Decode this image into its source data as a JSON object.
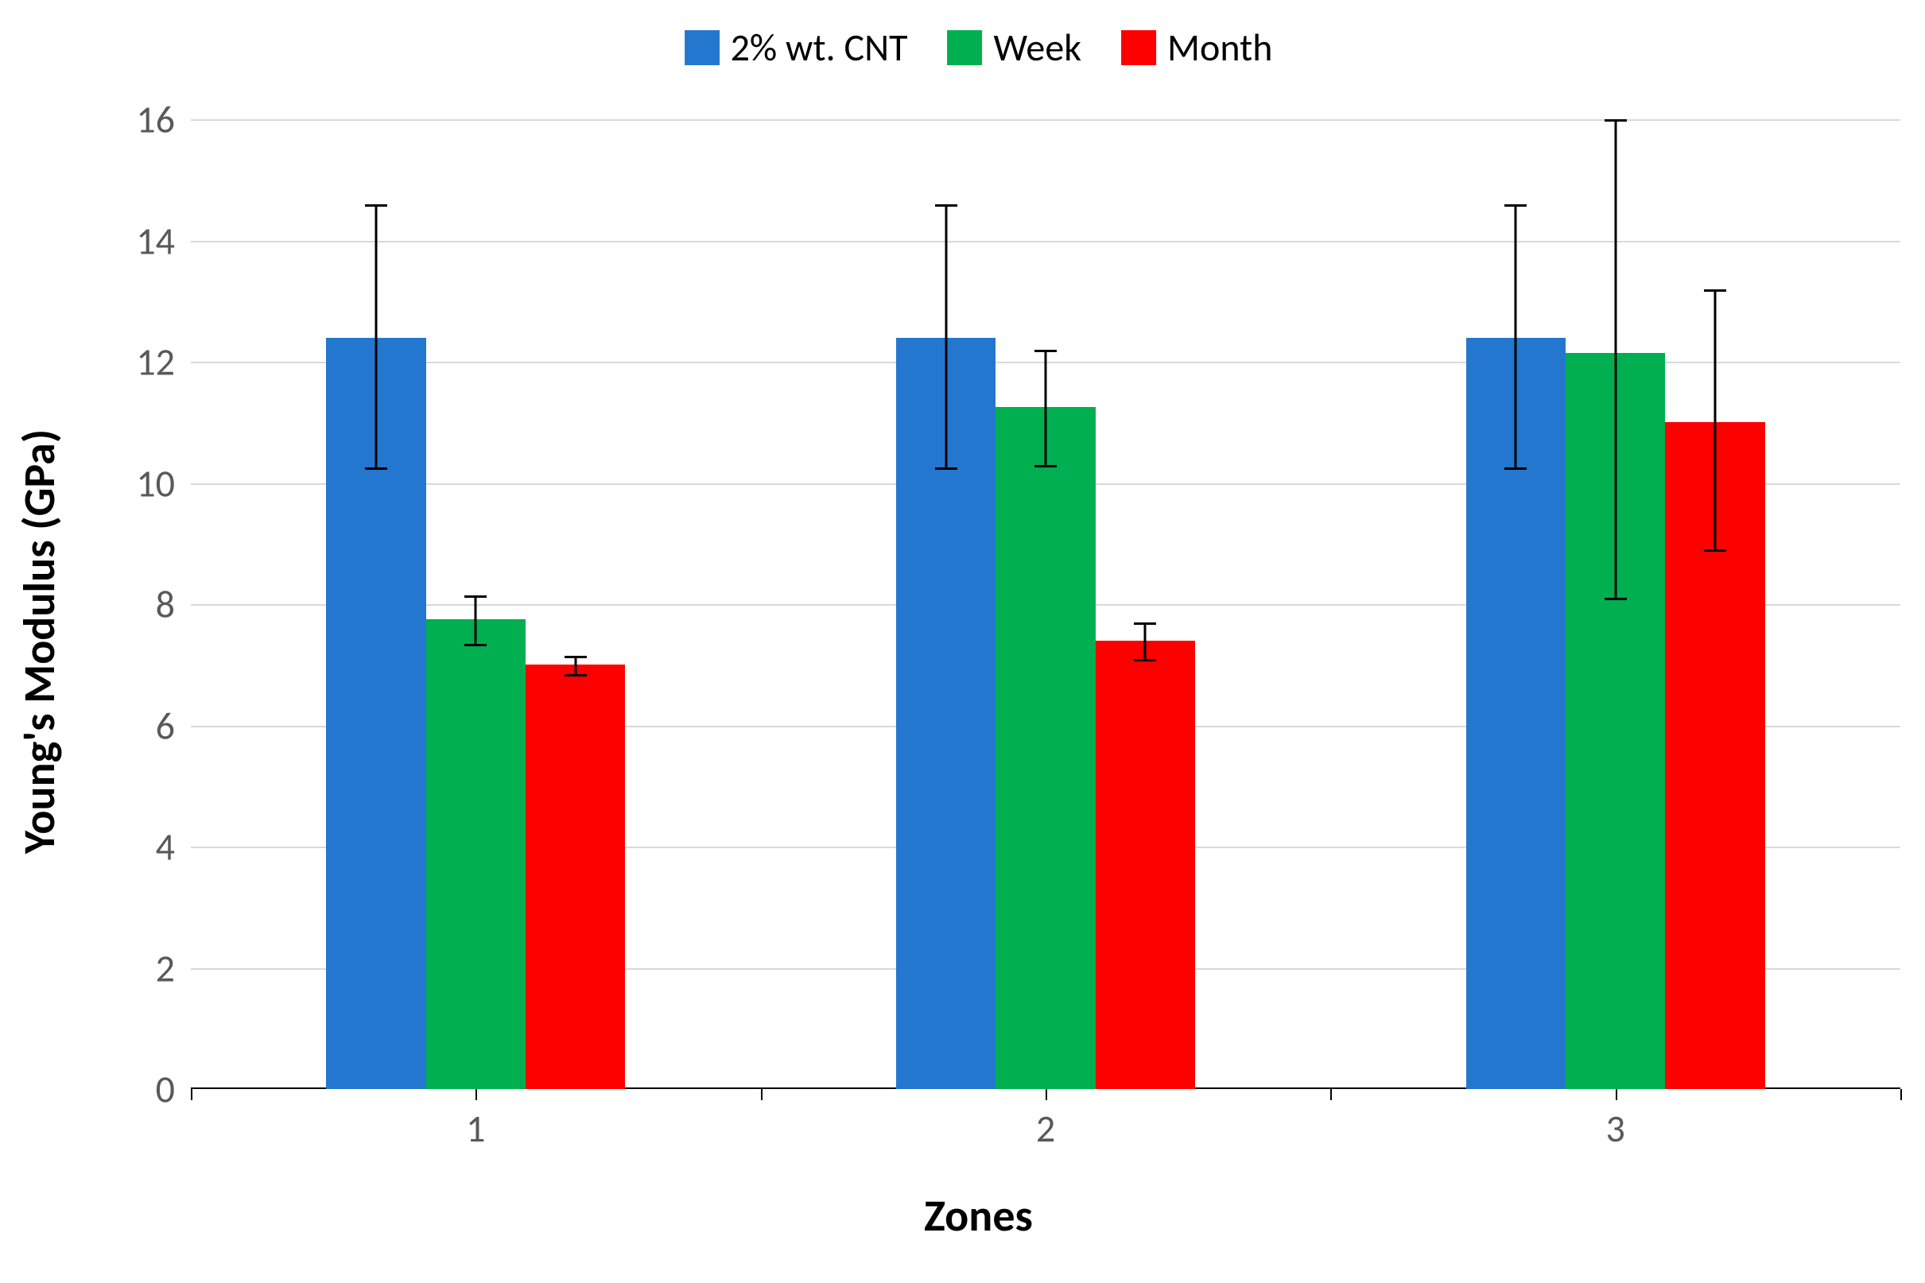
{
  "chart": {
    "type": "bar",
    "y_axis_title": "Young's Modulus (GPa)",
    "x_axis_title": "Zones",
    "title_fontsize": 56,
    "title_fontweight": 900,
    "tick_fontsize": 48,
    "tick_color": "#595959",
    "legend_fontsize": 48,
    "background_color": "#ffffff",
    "grid_color": "#d9d9d9",
    "axis_color": "#000000",
    "ylim": [
      0,
      16
    ],
    "ytick_step": 2,
    "yticks": [
      0,
      2,
      4,
      6,
      8,
      10,
      12,
      14,
      16
    ],
    "categories": [
      "1",
      "2",
      "3"
    ],
    "series": [
      {
        "label": "2% wt. CNT",
        "color": "#2477ce"
      },
      {
        "label": "Week",
        "color": "#00af4f"
      },
      {
        "label": "Month",
        "color": "#fd0000"
      }
    ],
    "bar_width_ratio": 0.175,
    "group_gap_ratio": 0.35,
    "error_bar_color": "#000000",
    "error_cap_width": 28,
    "data": [
      {
        "category": "1",
        "bars": [
          {
            "series": 0,
            "value": 12.4,
            "error_low": 2.15,
            "error_high": 2.2
          },
          {
            "series": 1,
            "value": 7.75,
            "error_low": 0.4,
            "error_high": 0.4
          },
          {
            "series": 2,
            "value": 7.0,
            "error_low": 0.15,
            "error_high": 0.15
          }
        ]
      },
      {
        "category": "2",
        "bars": [
          {
            "series": 0,
            "value": 12.4,
            "error_low": 2.15,
            "error_high": 2.2
          },
          {
            "series": 1,
            "value": 11.25,
            "error_low": 0.95,
            "error_high": 0.95
          },
          {
            "series": 2,
            "value": 7.4,
            "error_low": 0.3,
            "error_high": 0.3
          }
        ]
      },
      {
        "category": "3",
        "bars": [
          {
            "series": 0,
            "value": 12.4,
            "error_low": 2.15,
            "error_high": 2.2
          },
          {
            "series": 1,
            "value": 12.15,
            "error_low": 4.05,
            "error_high": 3.85
          },
          {
            "series": 2,
            "value": 11.0,
            "error_low": 2.1,
            "error_high": 2.2
          }
        ]
      }
    ]
  }
}
